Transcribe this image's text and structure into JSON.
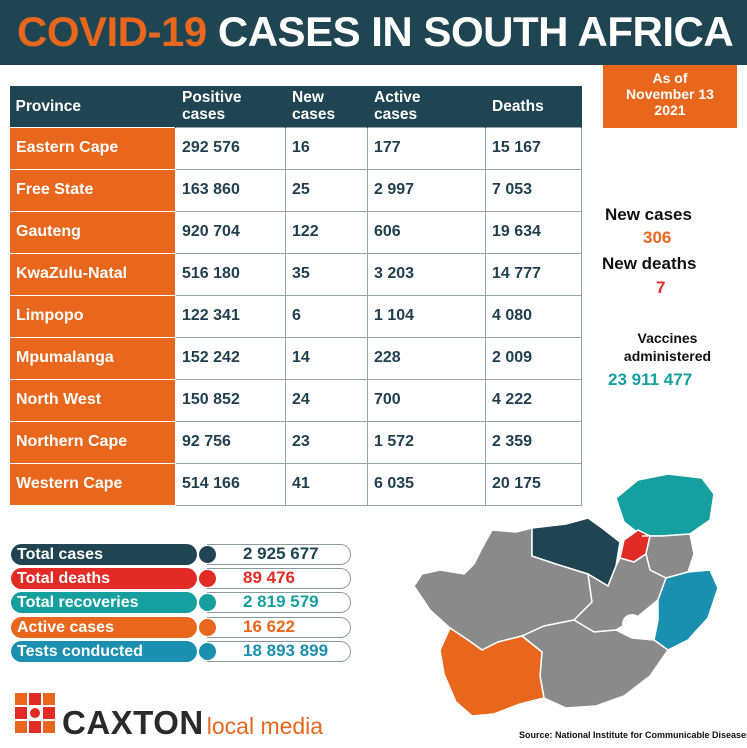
{
  "banner": {
    "title_highlight": "COVID-19",
    "title_rest": "CASES IN SOUTH AFRICA",
    "background": "#1f4452",
    "highlight_color": "#e8671c"
  },
  "as_of": {
    "line1": "As of",
    "line2": "November 13",
    "line3": "2021"
  },
  "table": {
    "headers": {
      "province": "Province",
      "positive_1": "Positive",
      "positive_2": "cases",
      "new_1": "New",
      "new_2": "cases",
      "active_1": "Active",
      "active_2": "cases",
      "deaths": "Deaths"
    },
    "rows": [
      {
        "province": "Eastern Cape",
        "positive": "292 576",
        "new": "16",
        "active": "177",
        "deaths": "15 167"
      },
      {
        "province": "Free State",
        "positive": "163 860",
        "new": "25",
        "active": "2 997",
        "deaths": "7 053"
      },
      {
        "province": "Gauteng",
        "positive": "920 704",
        "new": "122",
        "active": "606",
        "deaths": "19 634"
      },
      {
        "province": "KwaZulu-Natal",
        "positive": "516 180",
        "new": "35",
        "active": "3 203",
        "deaths": "14 777"
      },
      {
        "province": "Limpopo",
        "positive": "122 341",
        "new": "6",
        "active": "1 104",
        "deaths": "4 080"
      },
      {
        "province": "Mpumalanga",
        "positive": "152 242",
        "new": "14",
        "active": "228",
        "deaths": "2 009"
      },
      {
        "province": "North West",
        "positive": "150 852",
        "new": "24",
        "active": "700",
        "deaths": "4 222"
      },
      {
        "province": "Northern Cape",
        "positive": "92 756",
        "new": "23",
        "active": "1 572",
        "deaths": "2 359"
      },
      {
        "province": "Western Cape",
        "positive": "514 166",
        "new": "41",
        "active": "6 035",
        "deaths": "20 175"
      }
    ]
  },
  "side": {
    "new_cases_label": "New cases",
    "new_cases_value": "306",
    "new_deaths_label": "New deaths",
    "new_deaths_value": "7",
    "vaccines_label_1": "Vaccines",
    "vaccines_label_2": "administered",
    "vaccines_value": "23 911 477"
  },
  "totals": [
    {
      "label": "Total cases",
      "value": "2 925 677",
      "color": "#1f4452"
    },
    {
      "label": "Total deaths",
      "value": "89 476",
      "color": "#e32b26"
    },
    {
      "label": "Total recoveries",
      "value": "2 819 579",
      "color": "#169f9f"
    },
    {
      "label": "Active cases",
      "value": "16 622",
      "color": "#e8671c"
    },
    {
      "label": "Tests conducted",
      "value": "18 893 899",
      "color": "#1a8fb0"
    }
  ],
  "logo": {
    "brand": "CAXTON",
    "sub": "local media"
  },
  "source": "Source: National Institute for Communicable Diseases"
}
